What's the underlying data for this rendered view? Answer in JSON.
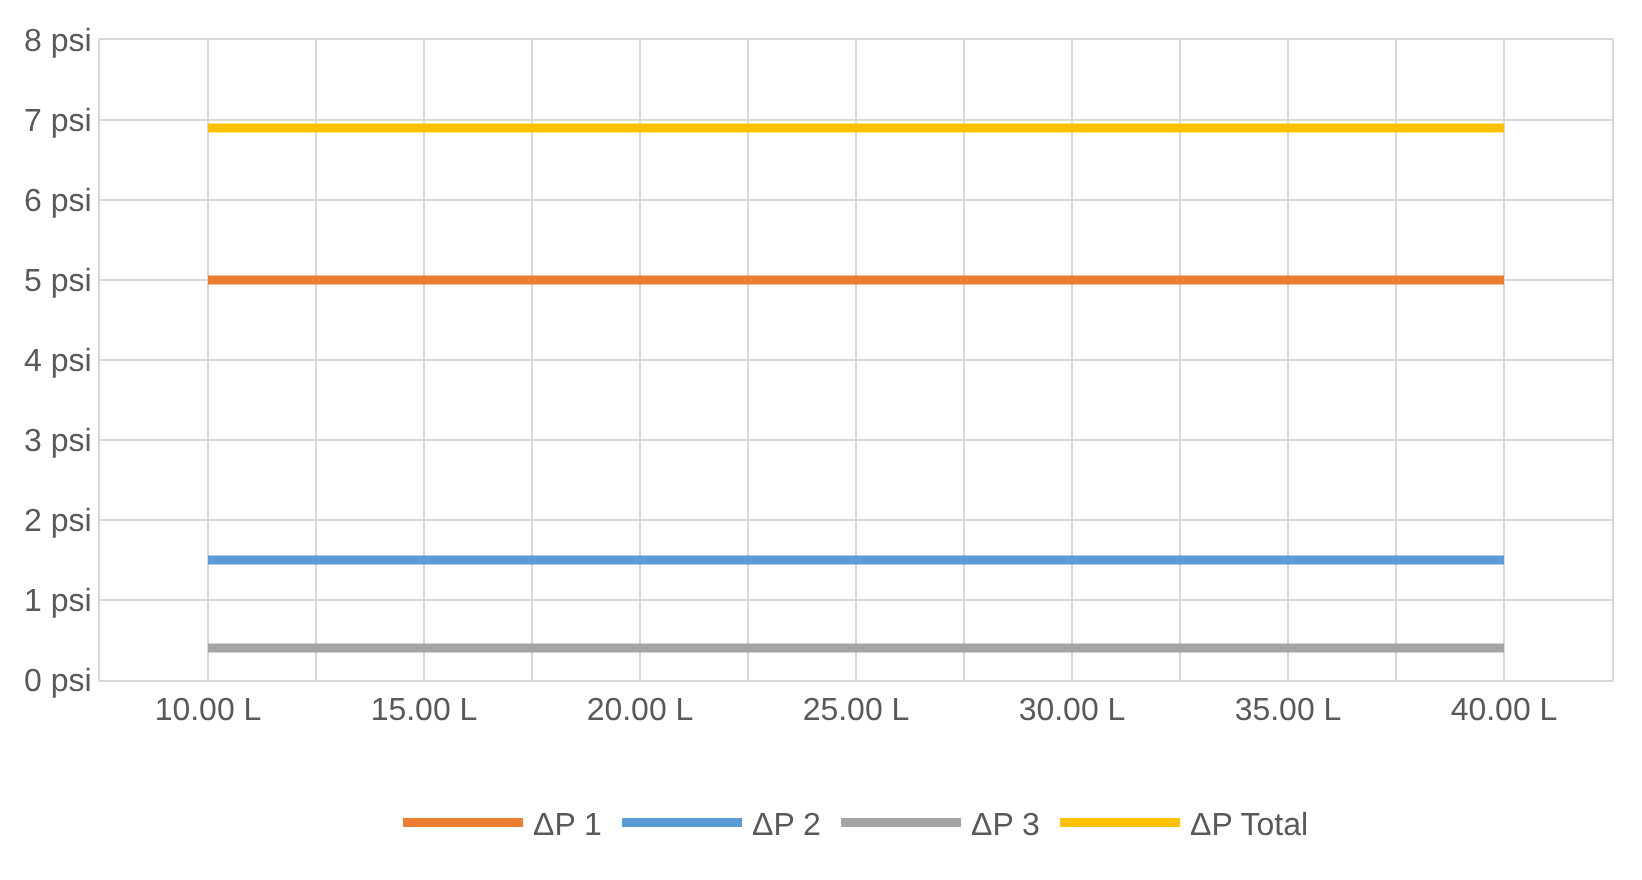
{
  "chart_data": {
    "type": "line",
    "x": [
      10,
      40
    ],
    "series": [
      {
        "name": "ΔP 1",
        "color": "#ed7d31",
        "values": [
          5.0,
          5.0
        ]
      },
      {
        "name": "ΔP 2",
        "color": "#5b9bd5",
        "values": [
          1.5,
          1.5
        ]
      },
      {
        "name": "ΔP 3",
        "color": "#a5a5a5",
        "values": [
          0.4,
          0.4
        ]
      },
      {
        "name": "ΔP Total",
        "color": "#ffc000",
        "values": [
          6.9,
          6.9
        ]
      }
    ],
    "xlim": [
      7.5,
      42.5
    ],
    "xticks": [
      {
        "value": 10,
        "label": "10.00 L"
      },
      {
        "value": 12.5,
        "label": null
      },
      {
        "value": 15,
        "label": "15.00 L"
      },
      {
        "value": 17.5,
        "label": null
      },
      {
        "value": 20,
        "label": "20.00 L"
      },
      {
        "value": 22.5,
        "label": null
      },
      {
        "value": 25,
        "label": "25.00 L"
      },
      {
        "value": 27.5,
        "label": null
      },
      {
        "value": 30,
        "label": "30.00 L"
      },
      {
        "value": 32.5,
        "label": null
      },
      {
        "value": 35,
        "label": "35.00 L"
      },
      {
        "value": 37.5,
        "label": null
      },
      {
        "value": 40,
        "label": "40.00 L"
      }
    ],
    "ylim": [
      0,
      8
    ],
    "yticks": [
      {
        "value": 0,
        "label": "0 psi"
      },
      {
        "value": 1,
        "label": "1 psi"
      },
      {
        "value": 2,
        "label": "2 psi"
      },
      {
        "value": 3,
        "label": "3 psi"
      },
      {
        "value": 4,
        "label": "4 psi"
      },
      {
        "value": 5,
        "label": "5 psi"
      },
      {
        "value": 6,
        "label": "6 psi"
      },
      {
        "value": 7,
        "label": "7 psi"
      },
      {
        "value": 8,
        "label": "8 psi"
      }
    ],
    "grid": true,
    "legend": "bottom",
    "marker": "none",
    "line_style": "solid"
  }
}
